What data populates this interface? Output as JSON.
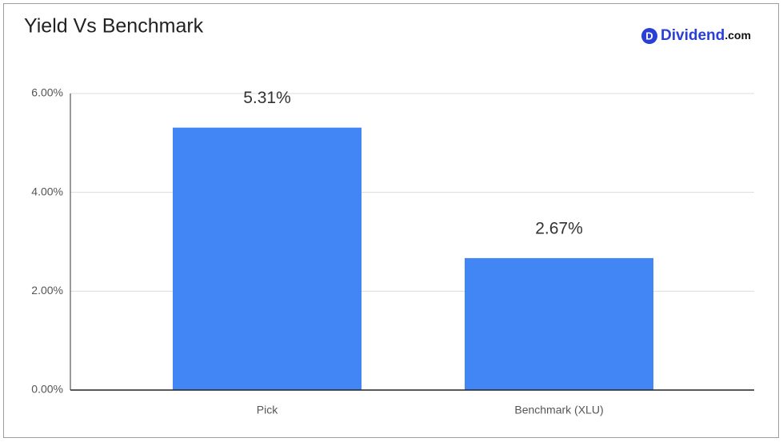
{
  "chart_data": {
    "type": "bar",
    "title": "Yield Vs Benchmark",
    "logo": {
      "icon": "D",
      "name": "Dividend",
      "suffix": ".com"
    },
    "categories": [
      "Pick",
      "Benchmark (XLU)"
    ],
    "values": [
      5.31,
      2.67
    ],
    "value_labels": [
      "5.31%",
      "2.67%"
    ],
    "color": "#4285f4",
    "ylim": [
      0,
      6
    ],
    "yticks": [
      {
        "value": 0,
        "label": "0.00%"
      },
      {
        "value": 2,
        "label": "2.00%"
      },
      {
        "value": 4,
        "label": "4.00%"
      },
      {
        "value": 6,
        "label": "6.00%"
      }
    ],
    "grid": true
  }
}
